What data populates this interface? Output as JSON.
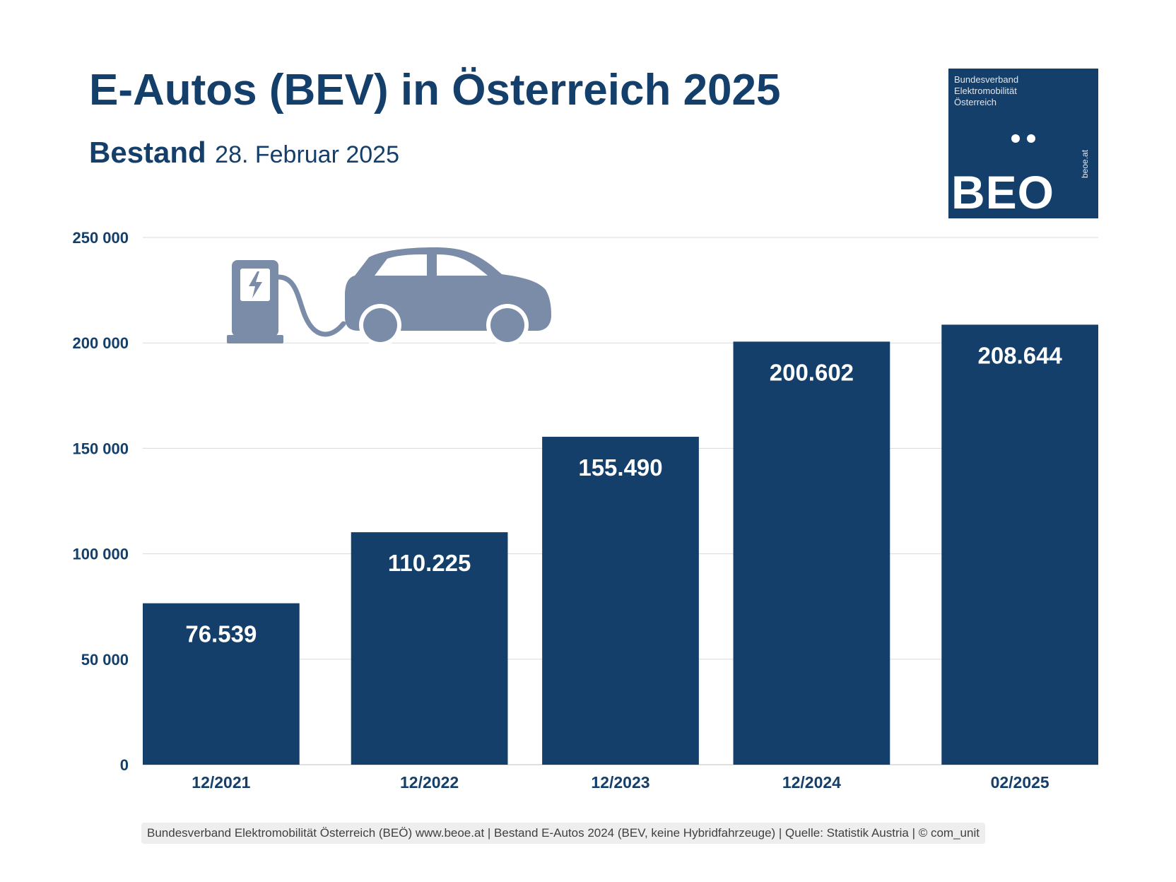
{
  "header": {
    "title": "E-Autos (BEV) in Österreich 2025",
    "subtitle_strong": "Bestand",
    "subtitle_date": "28. Februar 2025"
  },
  "logo": {
    "lines": [
      "Bundesverband",
      "Elektromobilität",
      "Österreich"
    ],
    "mark": "BEO",
    "side_text": "beoe.at",
    "bg_color": "#143f6a"
  },
  "icons": [
    "charging-station-icon",
    "electric-car-icon"
  ],
  "chart_data": {
    "type": "bar",
    "categories": [
      "12/2021",
      "12/2022",
      "12/2023",
      "12/2024",
      "02/2025"
    ],
    "values": [
      76539,
      110225,
      155490,
      200602,
      208644
    ],
    "value_labels": [
      "76.539",
      "110.225",
      "155.490",
      "200.602",
      "208.644"
    ],
    "yticks": [
      0,
      50000,
      100000,
      150000,
      200000,
      250000
    ],
    "ytick_labels": [
      "0",
      "50 000",
      "100 000",
      "150 000",
      "200 000",
      "250 000"
    ],
    "ylim": [
      0,
      250000
    ],
    "grid": true,
    "legend": "none",
    "bar_color": "#143f6a",
    "icon_color": "#7a8ca8"
  },
  "footer": {
    "text": "Bundesverband Elektromobilität Österreich (BEÖ) www.beoe.at | Bestand E-Autos 2024 (BEV, keine Hybridfahrzeuge) | Quelle: Statistik Austria | © com_unit"
  }
}
